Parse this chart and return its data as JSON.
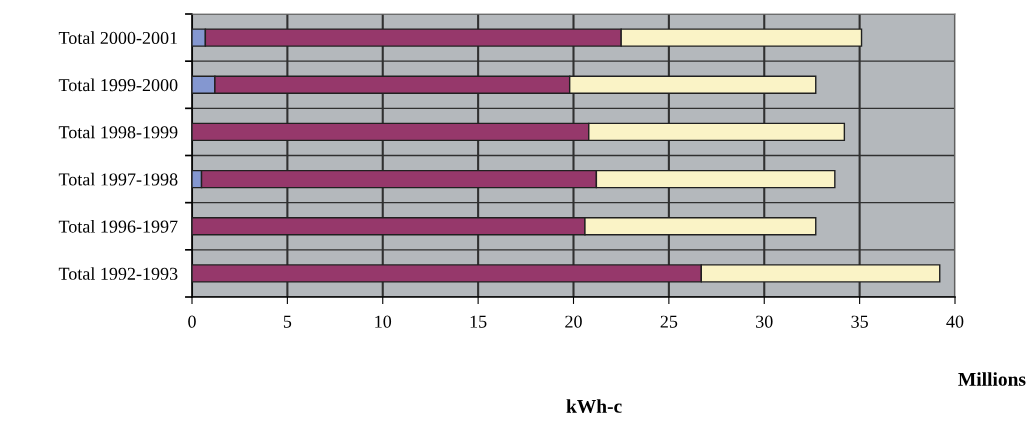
{
  "chart_data": {
    "type": "bar",
    "orientation": "horizontal",
    "stacked": true,
    "categories": [
      "Total 2000-2001",
      "Total 1999-2000",
      "Total 1998-1999",
      "Total 1997-1998",
      "Total 1996-1997",
      "Total 1992-1993"
    ],
    "series": [
      {
        "color": "#8497d0",
        "values": [
          0.7,
          1.2,
          null,
          0.5,
          null,
          null
        ]
      },
      {
        "color": "#96386b",
        "values": [
          21.8,
          18.6,
          20.8,
          20.7,
          20.6,
          26.7
        ]
      },
      {
        "color": "#faf3c6",
        "values": [
          12.6,
          12.9,
          13.4,
          12.5,
          12.1,
          12.5
        ]
      }
    ],
    "xlim": [
      0,
      40
    ],
    "xticks": [
      0,
      5,
      10,
      15,
      20,
      25,
      30,
      35,
      40
    ],
    "xlabel": "kWh-c",
    "annotations": [
      "Millions"
    ],
    "grid": "x",
    "legend": false
  }
}
